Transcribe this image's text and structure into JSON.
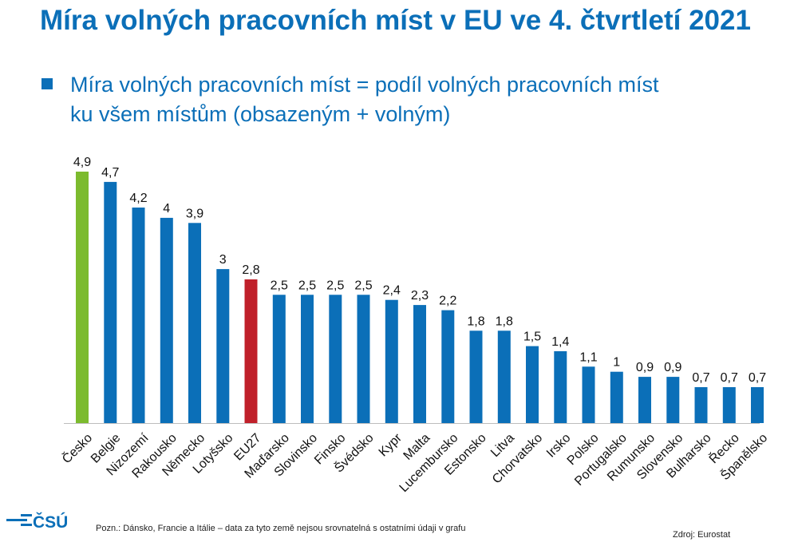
{
  "header": {
    "title": "Míra volných pracovních míst v EU ve 4. čtvrtletí 2021"
  },
  "bullet": {
    "line1": "Míra volných pracovních míst = podíl volných pracovních míst",
    "line2": "ku všem místům (obsazeným + volným)"
  },
  "chart_data": {
    "type": "bar",
    "categories": [
      "Česko",
      "Belgie",
      "Nizozemí",
      "Rakousko",
      "Německo",
      "Lotyšsko",
      "EU27",
      "Maďarsko",
      "Slovinsko",
      "Finsko",
      "Švédsko",
      "Kypr",
      "Malta",
      "Lucembursko",
      "Estonsko",
      "Litva",
      "Chorvatsko",
      "Irsko",
      "Polsko",
      "Portugalsko",
      "Rumunsko",
      "Slovensko",
      "Bulharsko",
      "Řecko",
      "Španělsko"
    ],
    "values": [
      4.9,
      4.7,
      4.2,
      4,
      3.9,
      3,
      2.8,
      2.5,
      2.5,
      2.5,
      2.5,
      2.4,
      2.3,
      2.2,
      1.8,
      1.8,
      1.5,
      1.4,
      1.1,
      1,
      0.9,
      0.9,
      0.7,
      0.7,
      0.7
    ],
    "value_labels": [
      "4,9",
      "4,7",
      "4,2",
      "4",
      "3,9",
      "3",
      "2,8",
      "2,5",
      "2,5",
      "2,5",
      "2,5",
      "2,4",
      "2,3",
      "2,2",
      "1,8",
      "1,8",
      "1,5",
      "1,4",
      "1,1",
      "1",
      "0,9",
      "0,9",
      "0,7",
      "0,7",
      "0,7"
    ],
    "ylim": [
      0,
      5
    ],
    "colors": {
      "default": "#0b6fb8",
      "highlight": "#7cbb2e",
      "eu": "#c0202a"
    },
    "highlight_index": 0,
    "eu_index": 6,
    "grid": false
  },
  "footer": {
    "logo_text": "ČSÚ",
    "note": "Pozn.: Dánsko, Francie a Itálie – data za tyto země nejsou srovnatelná s ostatními údaji v grafu",
    "source": "Zdroj: Eurostat"
  }
}
